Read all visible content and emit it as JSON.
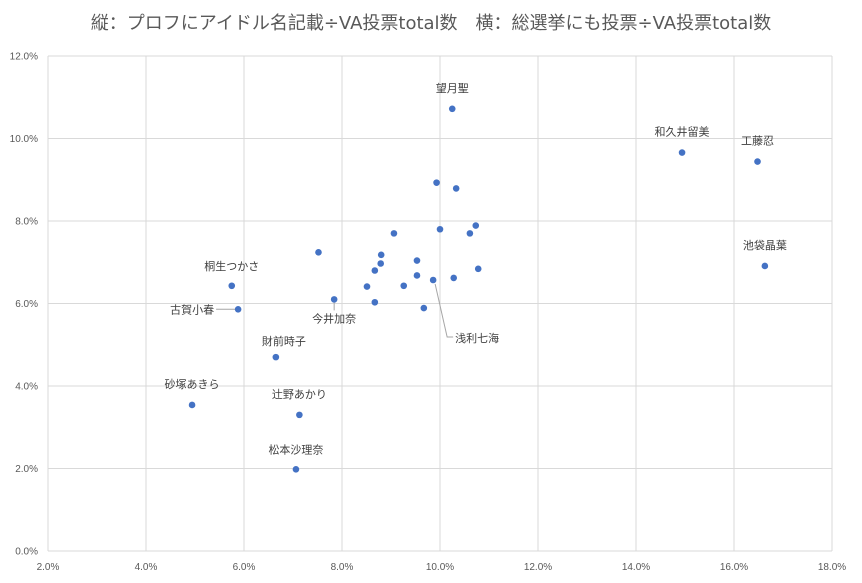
{
  "chart_data": {
    "type": "scatter",
    "title": "縦：プロフにアイドル名記載÷VA投票total数　横：総選挙にも投票÷VA投票total数",
    "xlabel": "",
    "ylabel": "",
    "xlim": [
      0.02,
      0.18
    ],
    "ylim": [
      0.0,
      0.12
    ],
    "x_ticks": [
      "2.0%",
      "4.0%",
      "6.0%",
      "8.0%",
      "10.0%",
      "12.0%",
      "14.0%",
      "16.0%",
      "18.0%"
    ],
    "y_ticks": [
      "0.0%",
      "2.0%",
      "4.0%",
      "6.0%",
      "8.0%",
      "10.0%",
      "12.0%"
    ],
    "grid": true,
    "marker_color": "#4472c4",
    "points": [
      {
        "x": 0.1025,
        "y": 0.1072,
        "label": "望月聖"
      },
      {
        "x": 0.1494,
        "y": 0.0966,
        "label": "和久井留美"
      },
      {
        "x": 0.1648,
        "y": 0.0944,
        "label": "工藤忍"
      },
      {
        "x": 0.1663,
        "y": 0.0691,
        "label": "池袋晶葉"
      },
      {
        "x": 0.0993,
        "y": 0.0893,
        "label": ""
      },
      {
        "x": 0.1033,
        "y": 0.0879,
        "label": ""
      },
      {
        "x": 0.1073,
        "y": 0.0789,
        "label": ""
      },
      {
        "x": 0.0906,
        "y": 0.077,
        "label": ""
      },
      {
        "x": 0.1,
        "y": 0.078,
        "label": ""
      },
      {
        "x": 0.1061,
        "y": 0.077,
        "label": ""
      },
      {
        "x": 0.0752,
        "y": 0.0724,
        "label": ""
      },
      {
        "x": 0.088,
        "y": 0.0718,
        "label": ""
      },
      {
        "x": 0.0879,
        "y": 0.0697,
        "label": ""
      },
      {
        "x": 0.0867,
        "y": 0.068,
        "label": ""
      },
      {
        "x": 0.0953,
        "y": 0.0704,
        "label": ""
      },
      {
        "x": 0.0953,
        "y": 0.0668,
        "label": ""
      },
      {
        "x": 0.1028,
        "y": 0.0662,
        "label": ""
      },
      {
        "x": 0.1078,
        "y": 0.0684,
        "label": ""
      },
      {
        "x": 0.0986,
        "y": 0.0657,
        "label": "浅利七海"
      },
      {
        "x": 0.0851,
        "y": 0.0641,
        "label": ""
      },
      {
        "x": 0.0926,
        "y": 0.0643,
        "label": ""
      },
      {
        "x": 0.0575,
        "y": 0.0643,
        "label": "桐生つかさ"
      },
      {
        "x": 0.0784,
        "y": 0.061,
        "label": "今井加奈"
      },
      {
        "x": 0.0867,
        "y": 0.0603,
        "label": ""
      },
      {
        "x": 0.0967,
        "y": 0.0589,
        "label": ""
      },
      {
        "x": 0.0588,
        "y": 0.0586,
        "label": "古賀小春"
      },
      {
        "x": 0.0665,
        "y": 0.047,
        "label": "財前時子"
      },
      {
        "x": 0.0494,
        "y": 0.0354,
        "label": "砂塚あきら"
      },
      {
        "x": 0.0713,
        "y": 0.033,
        "label": "辻野あかり"
      },
      {
        "x": 0.0706,
        "y": 0.0198,
        "label": "松本沙理奈"
      }
    ]
  }
}
